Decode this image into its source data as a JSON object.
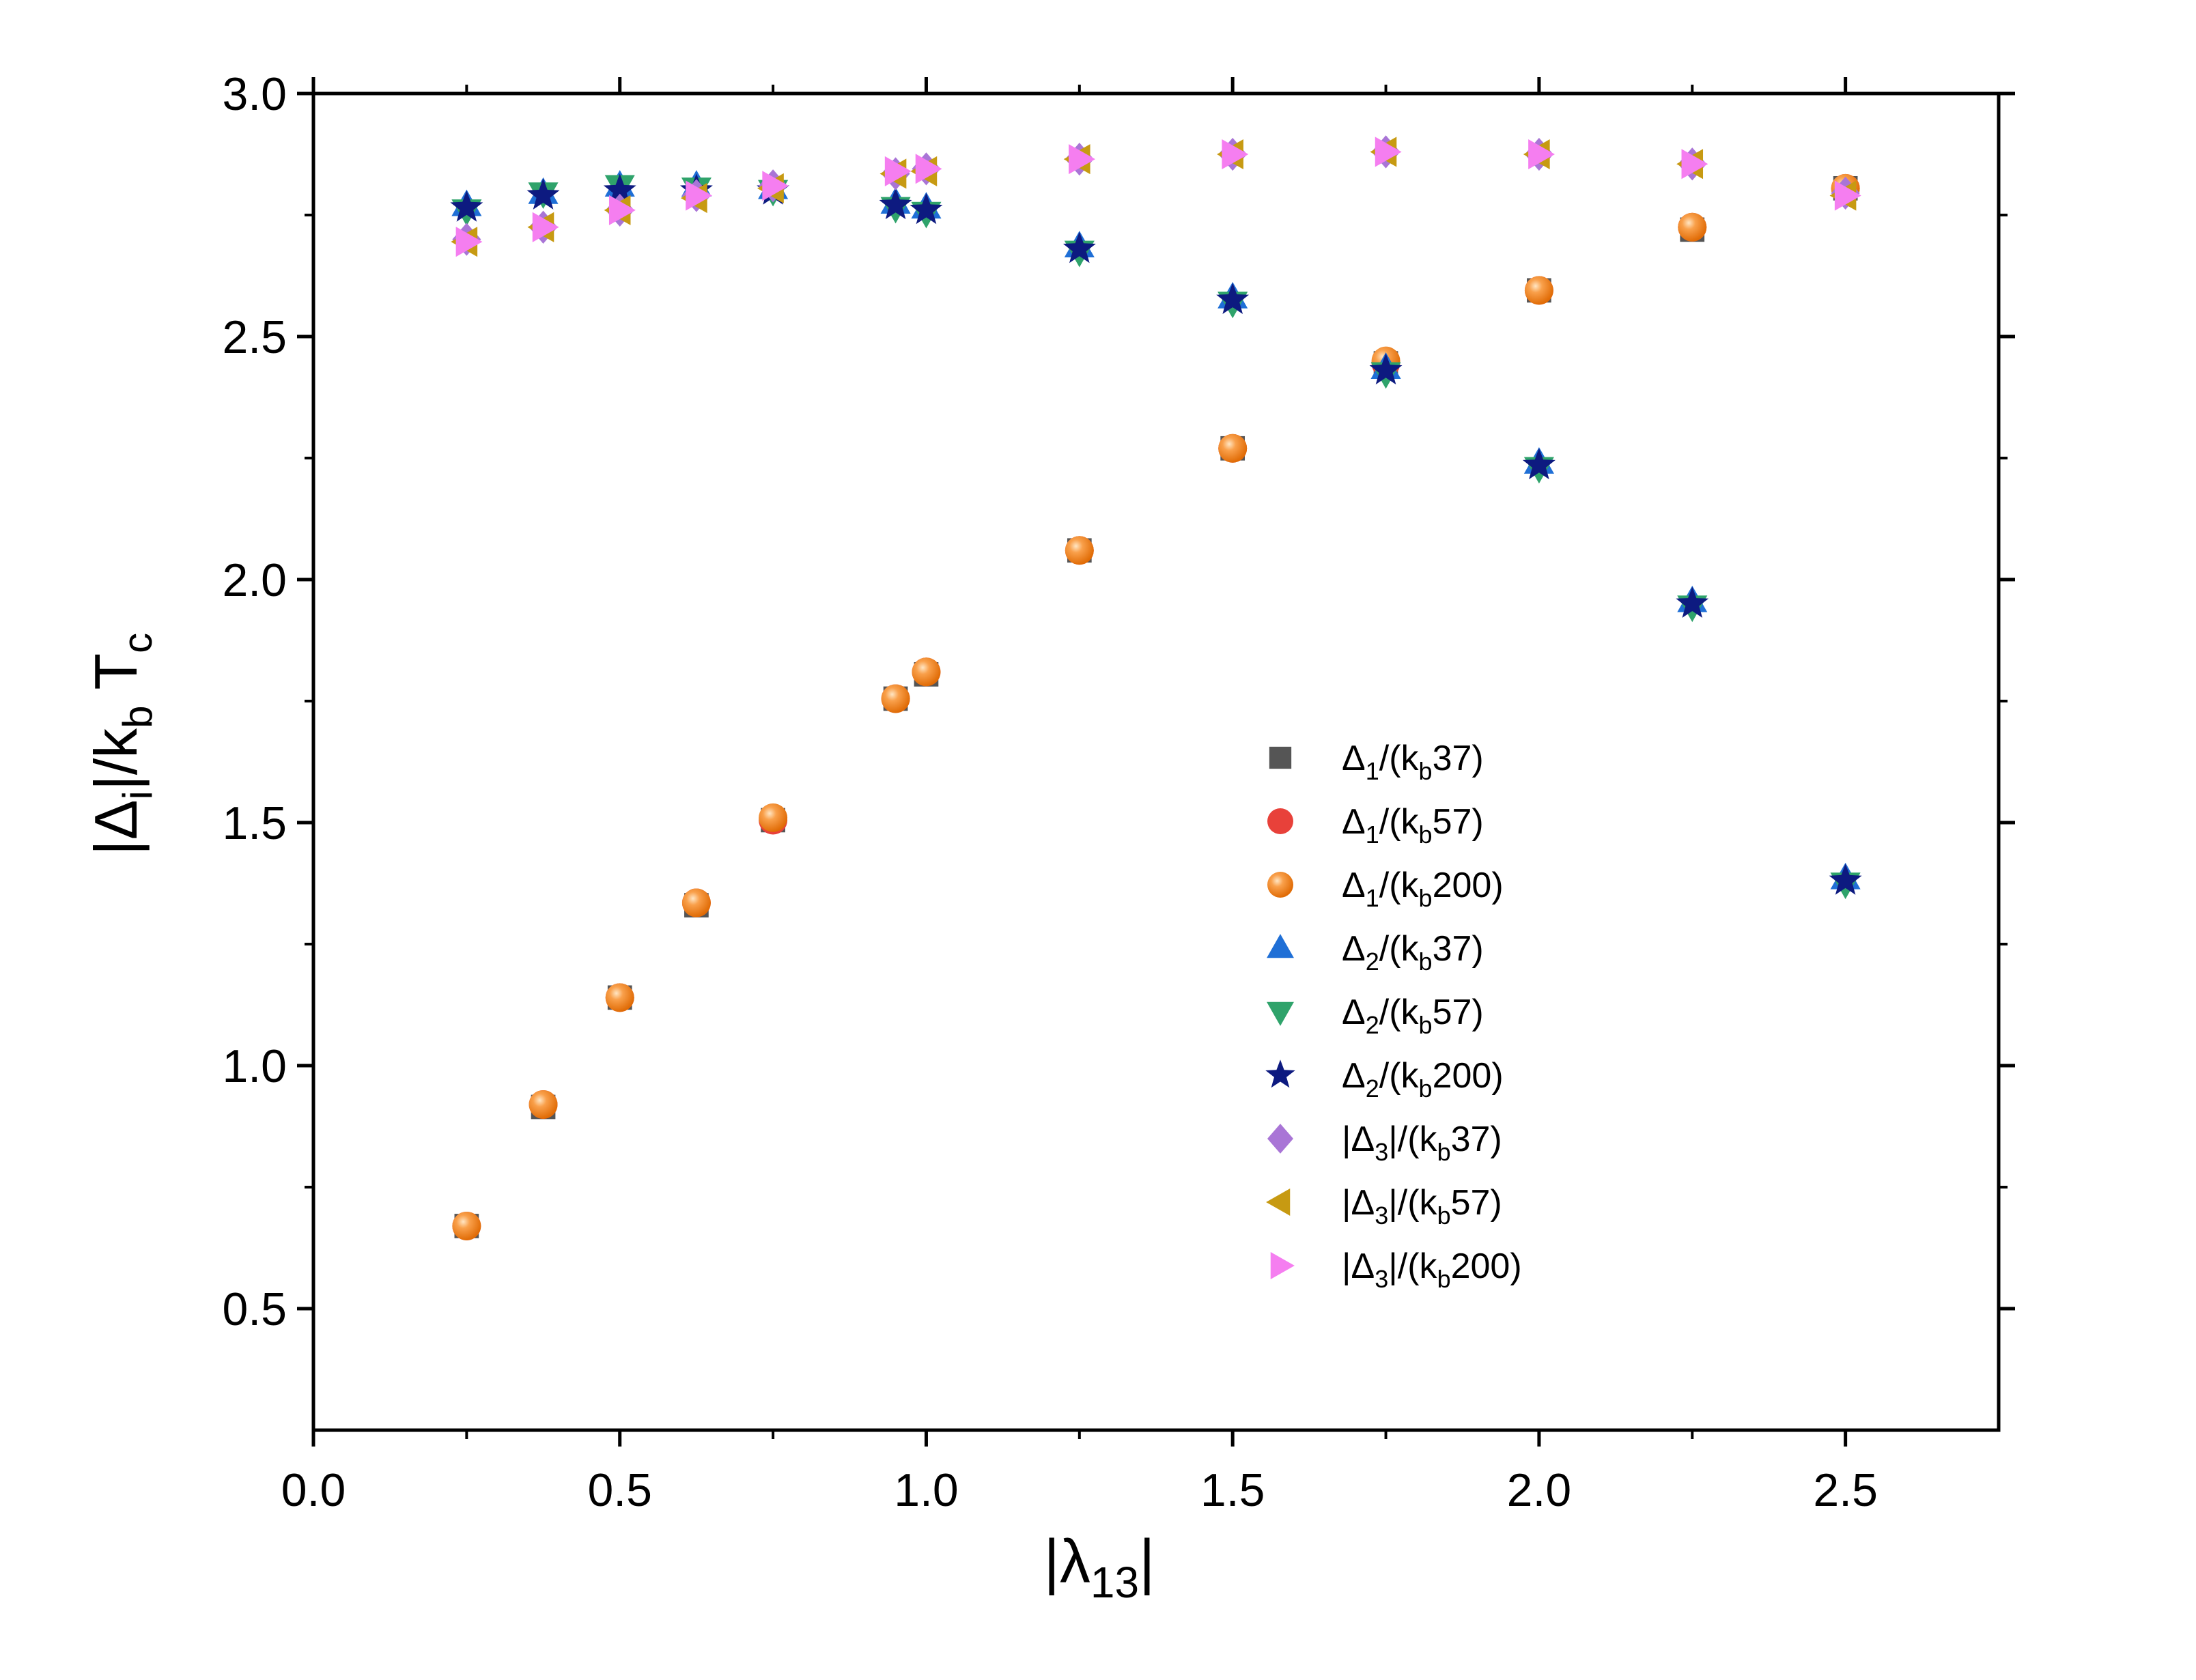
{
  "chart_data": {
    "type": "scatter",
    "xlabel": {
      "prefix": "|",
      "symbol": "λ",
      "sub": "13",
      "suffix": "|"
    },
    "ylabel": {
      "p1": "|Δ",
      "s1": "i",
      "p2": "|/k",
      "s2": "b",
      "p3": "T",
      "s3": "c"
    },
    "xlim": [
      0.0,
      2.75
    ],
    "ylim": [
      0.25,
      3.0
    ],
    "xticks": [
      "0.0",
      "0.5",
      "1.0",
      "1.5",
      "2.0",
      "2.5"
    ],
    "yticks": [
      "0.5",
      "1.0",
      "1.5",
      "2.0",
      "2.5",
      "3.0"
    ],
    "legend_position": "right-middle",
    "series": [
      {
        "name": "Δ1/(kb37)",
        "base": "Δ",
        "sub1": "1",
        "mid": "/(k",
        "sub2": "b",
        "tail": "37)",
        "abs": false,
        "marker": "square",
        "color": "#555555",
        "x": [
          0.25,
          0.375,
          0.5,
          0.625,
          0.75,
          0.95,
          1.0,
          1.25,
          1.5,
          1.75,
          2.0,
          2.25,
          2.5
        ],
        "y": [
          0.67,
          0.915,
          1.14,
          1.33,
          1.505,
          1.755,
          1.805,
          2.06,
          2.27,
          2.445,
          2.595,
          2.72,
          2.805
        ]
      },
      {
        "name": "Δ1/(kb57)",
        "base": "Δ",
        "sub1": "1",
        "mid": "/(k",
        "sub2": "b",
        "tail": "57)",
        "abs": false,
        "marker": "circle",
        "color": "#e8413a",
        "x": [
          0.25,
          0.375,
          0.5,
          0.625,
          0.75,
          0.95,
          1.0,
          1.25,
          1.5,
          1.75,
          2.0,
          2.25,
          2.5
        ],
        "y": [
          0.67,
          0.92,
          1.14,
          1.335,
          1.505,
          1.755,
          1.81,
          2.06,
          2.27,
          2.445,
          2.595,
          2.725,
          2.805
        ]
      },
      {
        "name": "Δ1/(kb200)",
        "base": "Δ",
        "sub1": "1",
        "mid": "/(k",
        "sub2": "b",
        "tail": "200)",
        "abs": false,
        "marker": "ball",
        "color": "#f7861c",
        "x": [
          0.25,
          0.375,
          0.5,
          0.625,
          0.75,
          0.95,
          1.0,
          1.25,
          1.5,
          1.75,
          2.0,
          2.25,
          2.5
        ],
        "y": [
          0.67,
          0.92,
          1.14,
          1.335,
          1.51,
          1.755,
          1.81,
          2.06,
          2.27,
          2.45,
          2.595,
          2.725,
          2.805
        ]
      },
      {
        "name": "Δ2/(kb37)",
        "base": "Δ",
        "sub1": "2",
        "mid": "/(k",
        "sub2": "b",
        "tail": "37)",
        "abs": false,
        "marker": "triangle-up",
        "color": "#1f6fd6",
        "x": [
          0.25,
          0.375,
          0.5,
          0.625,
          0.75,
          0.95,
          1.0,
          1.25,
          1.5,
          1.75,
          2.0,
          2.25,
          2.5
        ],
        "y": [
          2.77,
          2.795,
          2.81,
          2.81,
          2.805,
          2.775,
          2.765,
          2.685,
          2.58,
          2.435,
          2.24,
          1.955,
          1.385
        ]
      },
      {
        "name": "Δ2/(kb57)",
        "base": "Δ",
        "sub1": "2",
        "mid": "/(k",
        "sub2": "b",
        "tail": "57)",
        "abs": false,
        "marker": "triangle-down",
        "color": "#2fa36b",
        "x": [
          0.25,
          0.375,
          0.5,
          0.625,
          0.75,
          0.95,
          1.0,
          1.25,
          1.5,
          1.75,
          2.0,
          2.25,
          2.5
        ],
        "y": [
          2.76,
          2.795,
          2.81,
          2.805,
          2.8,
          2.765,
          2.755,
          2.675,
          2.57,
          2.425,
          2.23,
          1.945,
          1.375
        ]
      },
      {
        "name": "Δ2/(kb200)",
        "base": "Δ",
        "sub1": "2",
        "mid": "/(k",
        "sub2": "b",
        "tail": "200)",
        "abs": false,
        "marker": "star",
        "color": "#0d1a80",
        "x": [
          0.25,
          0.375,
          0.5,
          0.625,
          0.75,
          0.95,
          1.0,
          1.25,
          1.5,
          1.75,
          2.0,
          2.25,
          2.5
        ],
        "y": [
          2.765,
          2.79,
          2.8,
          2.8,
          2.8,
          2.77,
          2.76,
          2.68,
          2.575,
          2.43,
          2.235,
          1.95,
          1.38
        ]
      },
      {
        "name": "|Δ3|/(kb37)",
        "base": "Δ",
        "sub1": "3",
        "mid": "|/(k",
        "sub2": "b",
        "tail": "37)",
        "abs": true,
        "marker": "diamond",
        "color": "#a975d6",
        "x": [
          0.25,
          0.375,
          0.5,
          0.625,
          0.75,
          0.95,
          1.0,
          1.25,
          1.5,
          1.75,
          2.0,
          2.25,
          2.5
        ],
        "y": [
          2.7,
          2.725,
          2.76,
          2.79,
          2.81,
          2.835,
          2.845,
          2.865,
          2.875,
          2.88,
          2.875,
          2.855,
          2.795
        ]
      },
      {
        "name": "|Δ3|/(kb57)",
        "base": "Δ",
        "sub1": "3",
        "mid": "|/(k",
        "sub2": "b",
        "tail": "57)",
        "abs": true,
        "marker": "triangle-left",
        "color": "#c79a12",
        "x": [
          0.25,
          0.375,
          0.5,
          0.625,
          0.75,
          0.95,
          1.0,
          1.25,
          1.5,
          1.75,
          2.0,
          2.25,
          2.5
        ],
        "y": [
          2.695,
          2.725,
          2.76,
          2.785,
          2.805,
          2.835,
          2.84,
          2.865,
          2.875,
          2.88,
          2.875,
          2.855,
          2.79
        ]
      },
      {
        "name": "|Δ3|/(kb200)",
        "base": "Δ",
        "sub1": "3",
        "mid": "|/(k",
        "sub2": "b",
        "tail": "200)",
        "abs": true,
        "marker": "triangle-right",
        "color": "#f57ef0",
        "x": [
          0.25,
          0.375,
          0.5,
          0.625,
          0.75,
          0.95,
          1.0,
          1.25,
          1.5,
          1.75,
          2.0,
          2.25,
          2.5
        ],
        "y": [
          2.695,
          2.725,
          2.76,
          2.79,
          2.81,
          2.84,
          2.845,
          2.865,
          2.875,
          2.88,
          2.875,
          2.855,
          2.79
        ]
      }
    ]
  }
}
